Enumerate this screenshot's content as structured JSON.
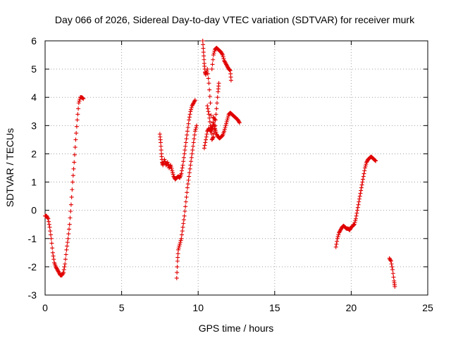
{
  "chart_data": {
    "type": "scatter",
    "title": "Day 066 of 2026, Sidereal Day-to-day VTEC variation (SDTVAR) for receiver murk",
    "xlabel": "GPS time / hours",
    "ylabel": "SDTVAR / TECUs",
    "xlim": [
      0,
      25
    ],
    "ylim": [
      -3,
      6
    ],
    "xticks": [
      0,
      5,
      10,
      15,
      20,
      25
    ],
    "yticks": [
      -3,
      -2,
      -1,
      0,
      1,
      2,
      3,
      4,
      5,
      6
    ],
    "grid": true,
    "legend": "none",
    "marker": "plus",
    "color": "#e00000",
    "series": [
      {
        "name": "SDTVAR",
        "segments": [
          [
            [
              0.0,
              -0.2
            ],
            [
              0.1,
              -0.2
            ],
            [
              0.2,
              -0.3
            ],
            [
              0.3,
              -0.6
            ],
            [
              0.4,
              -1.0
            ],
            [
              0.5,
              -1.5
            ],
            [
              0.6,
              -1.85
            ],
            [
              0.7,
              -2.0
            ],
            [
              0.8,
              -2.1
            ],
            [
              0.9,
              -2.2
            ],
            [
              1.0,
              -2.3
            ],
            [
              1.1,
              -2.3
            ],
            [
              1.2,
              -2.2
            ],
            [
              1.3,
              -1.9
            ],
            [
              1.4,
              -1.4
            ],
            [
              1.5,
              -1.0
            ],
            [
              1.6,
              -0.5
            ],
            [
              1.7,
              0.2
            ],
            [
              1.8,
              1.0
            ],
            [
              1.9,
              1.7
            ],
            [
              2.0,
              2.5
            ],
            [
              2.1,
              3.2
            ],
            [
              2.2,
              3.8
            ],
            [
              2.3,
              4.0
            ],
            [
              2.4,
              4.0
            ],
            [
              2.5,
              3.95
            ]
          ],
          [
            [
              7.5,
              2.7
            ],
            [
              7.55,
              2.4
            ],
            [
              7.6,
              2.0
            ],
            [
              7.65,
              1.7
            ],
            [
              7.7,
              1.6
            ],
            [
              7.8,
              1.8
            ],
            [
              7.9,
              1.6
            ],
            [
              8.0,
              1.7
            ],
            [
              8.1,
              1.5
            ],
            [
              8.2,
              1.6
            ],
            [
              8.3,
              1.4
            ],
            [
              8.4,
              1.2
            ],
            [
              8.5,
              1.1
            ],
            [
              8.6,
              1.15
            ],
            [
              8.7,
              1.2
            ],
            [
              8.8,
              1.15
            ],
            [
              8.9,
              1.3
            ],
            [
              9.0,
              1.6
            ],
            [
              9.1,
              2.0
            ],
            [
              9.2,
              2.4
            ],
            [
              9.3,
              2.8
            ],
            [
              9.4,
              3.2
            ],
            [
              9.5,
              3.5
            ],
            [
              9.6,
              3.7
            ],
            [
              9.7,
              3.8
            ],
            [
              9.8,
              3.9
            ]
          ],
          [
            [
              8.6,
              -2.4
            ],
            [
              8.65,
              -1.8
            ],
            [
              8.7,
              -1.4
            ],
            [
              8.8,
              -1.2
            ],
            [
              8.9,
              -1.0
            ],
            [
              9.0,
              -0.6
            ],
            [
              9.1,
              -0.2
            ],
            [
              9.2,
              0.3
            ],
            [
              9.3,
              0.8
            ],
            [
              9.4,
              1.2
            ],
            [
              9.5,
              1.6
            ],
            [
              9.6,
              2.0
            ],
            [
              9.7,
              2.4
            ],
            [
              9.8,
              2.8
            ],
            [
              9.9,
              3.0
            ]
          ],
          [
            [
              10.3,
              6.0
            ],
            [
              10.35,
              5.6
            ],
            [
              10.4,
              5.2
            ],
            [
              10.45,
              4.9
            ],
            [
              10.5,
              4.8
            ],
            [
              10.6,
              5.0
            ],
            [
              10.7,
              4.5
            ],
            [
              10.8,
              3.8
            ],
            [
              10.9,
              2.5
            ],
            [
              11.0,
              2.6
            ],
            [
              11.1,
              3.0
            ],
            [
              11.2,
              3.6
            ],
            [
              11.3,
              4.2
            ],
            [
              11.35,
              4.5
            ]
          ],
          [
            [
              10.9,
              5.0
            ],
            [
              11.0,
              5.5
            ],
            [
              11.1,
              5.7
            ],
            [
              11.2,
              5.75
            ],
            [
              11.3,
              5.7
            ],
            [
              11.4,
              5.65
            ],
            [
              11.5,
              5.6
            ],
            [
              11.6,
              5.5
            ],
            [
              11.7,
              5.3
            ],
            [
              11.8,
              5.2
            ],
            [
              11.9,
              5.1
            ],
            [
              12.0,
              5.0
            ],
            [
              12.1,
              4.95
            ],
            [
              12.15,
              4.6
            ]
          ],
          [
            [
              10.4,
              2.2
            ],
            [
              10.5,
              2.5
            ],
            [
              10.6,
              2.8
            ],
            [
              10.7,
              2.9
            ],
            [
              10.8,
              2.8
            ],
            [
              10.9,
              2.9
            ],
            [
              11.0,
              3.1
            ],
            [
              11.1,
              2.9
            ],
            [
              11.2,
              2.7
            ],
            [
              11.3,
              2.6
            ],
            [
              11.4,
              2.55
            ],
            [
              11.5,
              2.6
            ],
            [
              11.6,
              2.65
            ],
            [
              11.7,
              2.8
            ],
            [
              11.8,
              3.0
            ],
            [
              11.9,
              3.2
            ],
            [
              12.0,
              3.4
            ],
            [
              12.1,
              3.45
            ],
            [
              12.2,
              3.4
            ],
            [
              12.3,
              3.35
            ],
            [
              12.4,
              3.3
            ],
            [
              12.5,
              3.25
            ],
            [
              12.6,
              3.2
            ],
            [
              12.7,
              3.1
            ]
          ],
          [
            [
              10.6,
              3.7
            ],
            [
              10.7,
              3.4
            ],
            [
              10.8,
              3.0
            ],
            [
              10.9,
              2.7
            ],
            [
              11.0,
              3.3
            ],
            [
              11.1,
              3.2
            ]
          ],
          [
            [
              19.0,
              -1.3
            ],
            [
              19.1,
              -1.0
            ],
            [
              19.2,
              -0.8
            ],
            [
              19.3,
              -0.7
            ],
            [
              19.4,
              -0.6
            ],
            [
              19.5,
              -0.55
            ],
            [
              19.6,
              -0.6
            ],
            [
              19.7,
              -0.65
            ],
            [
              19.8,
              -0.65
            ],
            [
              19.9,
              -0.7
            ],
            [
              20.0,
              -0.6
            ],
            [
              20.1,
              -0.55
            ],
            [
              20.2,
              -0.5
            ],
            [
              20.3,
              -0.3
            ],
            [
              20.4,
              0.0
            ],
            [
              20.5,
              0.3
            ],
            [
              20.6,
              0.6
            ],
            [
              20.7,
              0.9
            ],
            [
              20.8,
              1.2
            ],
            [
              20.9,
              1.5
            ],
            [
              21.0,
              1.7
            ],
            [
              21.1,
              1.8
            ],
            [
              21.2,
              1.85
            ],
            [
              21.3,
              1.9
            ],
            [
              21.4,
              1.85
            ],
            [
              21.5,
              1.8
            ],
            [
              21.6,
              1.75
            ]
          ],
          [
            [
              22.5,
              -1.7
            ],
            [
              22.6,
              -1.8
            ],
            [
              22.7,
              -2.1
            ],
            [
              22.8,
              -2.5
            ],
            [
              22.85,
              -2.7
            ]
          ]
        ]
      }
    ]
  }
}
